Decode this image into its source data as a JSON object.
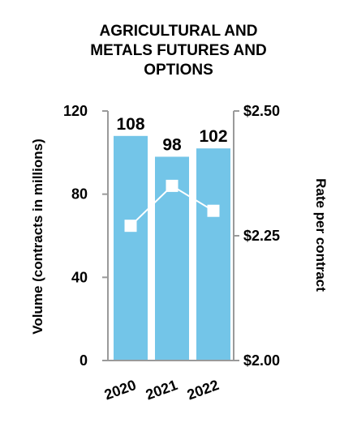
{
  "chart_data": {
    "type": "bar",
    "title_lines": [
      "AGRICULTURAL AND",
      "METALS FUTURES AND",
      "OPTIONS"
    ],
    "categories": [
      "2020",
      "2021",
      "2022"
    ],
    "series": [
      {
        "name": "Volume",
        "type": "bar",
        "axis": "left",
        "values": [
          108,
          98,
          102
        ]
      },
      {
        "name": "Rate per contract",
        "type": "line",
        "axis": "right",
        "values": [
          2.27,
          2.35,
          2.3
        ]
      }
    ],
    "data_labels": [
      "108",
      "98",
      "102"
    ],
    "ylabel": "Volume (contracts in millions)",
    "ylabel_right": "Rate per contract",
    "ylim": [
      0,
      120
    ],
    "ylim_right": [
      2.0,
      2.5
    ],
    "yticks": [
      0,
      40,
      80,
      120
    ],
    "yticks_right": [
      2.0,
      2.25,
      2.5
    ],
    "ytick_labels": [
      "0",
      "40",
      "80",
      "120"
    ],
    "ytick_labels_right": [
      "$2.00",
      "$2.25",
      "$2.50"
    ],
    "grid": false,
    "legend": "none",
    "colors": {
      "bar": "#73c5e8",
      "line": "#ffffff",
      "marker": "#ffffff",
      "axis": "#9a9a9a",
      "text": "#000000"
    }
  }
}
